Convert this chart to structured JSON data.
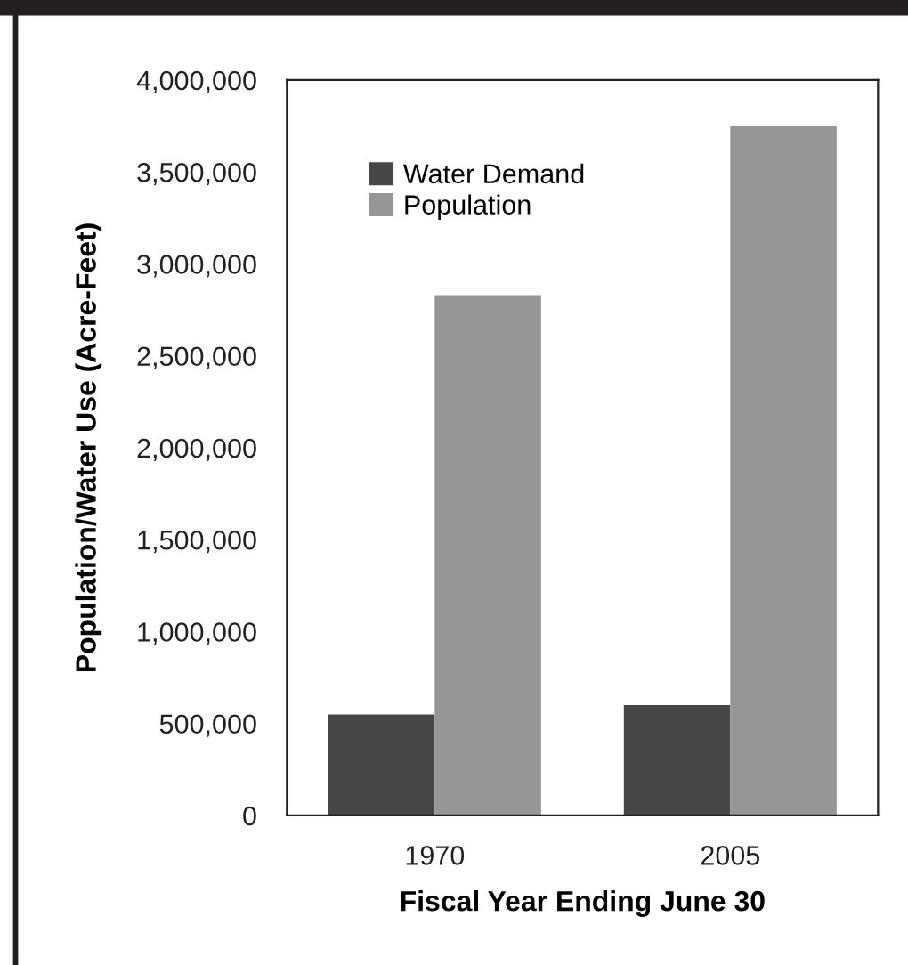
{
  "chart_data": {
    "type": "bar",
    "xlabel": "Fiscal Year Ending June 30",
    "ylabel": "Population/Water Use (Acre-Feet)",
    "categories": [
      "1970",
      "2005"
    ],
    "series": [
      {
        "name": "Water Demand",
        "color": "#464646",
        "values": [
          550000,
          600000
        ]
      },
      {
        "name": "Population",
        "color": "#969696",
        "values": [
          2830000,
          3750000
        ]
      }
    ],
    "ylim": [
      0,
      4000000
    ],
    "yticks": [
      {
        "value": 0,
        "label": "0"
      },
      {
        "value": 500000,
        "label": "500,000"
      },
      {
        "value": 1000000,
        "label": "1,000,000"
      },
      {
        "value": 1500000,
        "label": "1,500,000"
      },
      {
        "value": 2000000,
        "label": "2,000,000"
      },
      {
        "value": 2500000,
        "label": "2,500,000"
      },
      {
        "value": 3000000,
        "label": "3,000,000"
      },
      {
        "value": 3500000,
        "label": "3,500,000"
      },
      {
        "value": 4000000,
        "label": "4,000,000"
      }
    ],
    "legend": "top left"
  }
}
